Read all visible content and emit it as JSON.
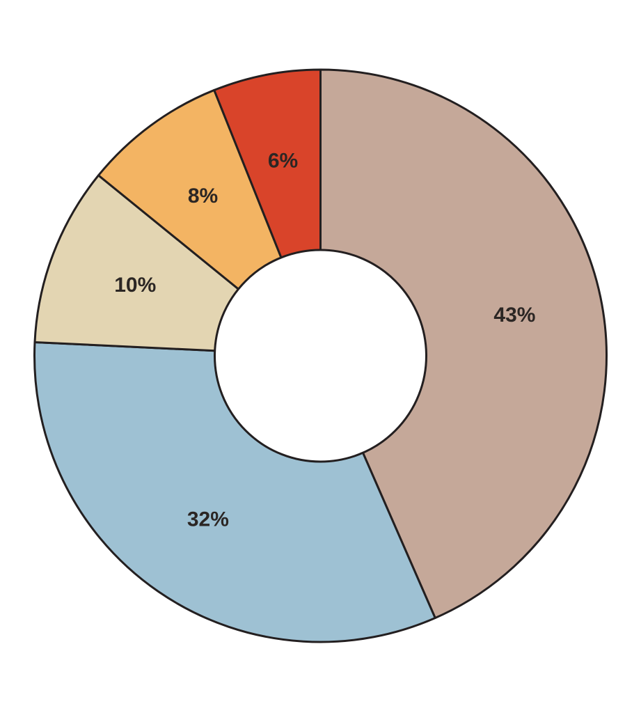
{
  "chart_data": {
    "type": "pie",
    "variant": "donut",
    "title": "",
    "slices": [
      {
        "label": "43%",
        "value": 43,
        "color": "#c5a899"
      },
      {
        "label": "32%",
        "value": 32,
        "color": "#9ec1d3"
      },
      {
        "label": "10%",
        "value": 10,
        "color": "#e3d5b2"
      },
      {
        "label": "8%",
        "value": 8,
        "color": "#f3b463"
      },
      {
        "label": "6%",
        "value": 6,
        "color": "#d9442a"
      }
    ],
    "start_angle": "12 o'clock",
    "direction": "clockwise",
    "legend": "none"
  }
}
